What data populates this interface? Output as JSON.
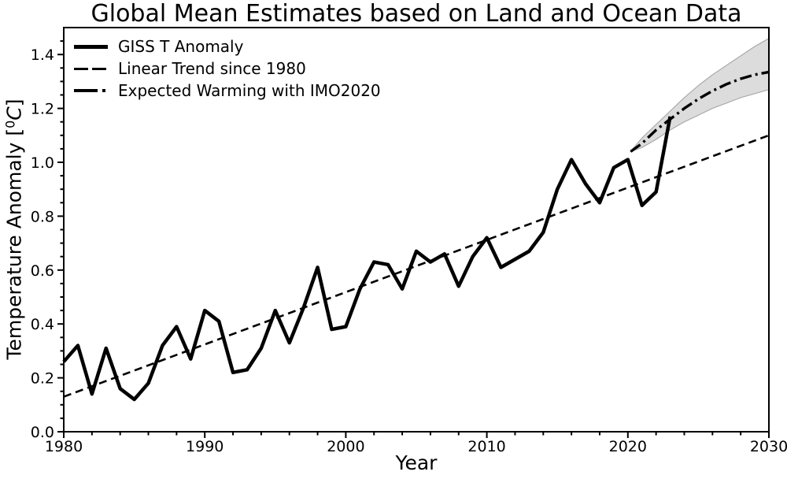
{
  "chart_data": {
    "type": "line",
    "title": "Global Mean Estimates based on Land and Ocean Data",
    "xlabel": "Year",
    "ylabel": "Temperature Anomaly [⁰C]",
    "ylabel_parts": {
      "prefix": "Temperature Anomaly [",
      "sup": "0",
      "unit": "C",
      "suffix": "]"
    },
    "xlim": [
      1980,
      2030
    ],
    "ylim": [
      0.0,
      1.5
    ],
    "grid": false,
    "legend_position": "upper-left",
    "x_ticks": {
      "major": [
        1980,
        1990,
        2000,
        2010,
        2020,
        2030
      ],
      "labels": [
        "1980",
        "1990",
        "2000",
        "2010",
        "2020",
        "2030"
      ],
      "minor_step": 2
    },
    "y_ticks": {
      "major": [
        0.0,
        0.2,
        0.4,
        0.6,
        0.8,
        1.0,
        1.2,
        1.4
      ],
      "labels": [
        "0.0",
        "0.2",
        "0.4",
        "0.6",
        "0.8",
        "1.0",
        "1.2",
        "1.4"
      ],
      "minor_step": 0.05
    },
    "series": [
      {
        "name": "GISS T Anomaly",
        "style": "solid",
        "x": [
          1980,
          1981,
          1982,
          1983,
          1984,
          1985,
          1986,
          1987,
          1988,
          1989,
          1990,
          1991,
          1992,
          1993,
          1994,
          1995,
          1996,
          1997,
          1998,
          1999,
          2000,
          2001,
          2002,
          2003,
          2004,
          2005,
          2006,
          2007,
          2008,
          2009,
          2010,
          2011,
          2012,
          2013,
          2014,
          2015,
          2016,
          2017,
          2018,
          2019,
          2020,
          2021,
          2022,
          2023
        ],
        "y": [
          0.26,
          0.32,
          0.14,
          0.31,
          0.16,
          0.12,
          0.18,
          0.32,
          0.39,
          0.27,
          0.45,
          0.41,
          0.22,
          0.23,
          0.31,
          0.45,
          0.33,
          0.46,
          0.61,
          0.38,
          0.39,
          0.53,
          0.63,
          0.62,
          0.53,
          0.67,
          0.63,
          0.66,
          0.54,
          0.65,
          0.72,
          0.61,
          0.64,
          0.67,
          0.74,
          0.9,
          1.01,
          0.92,
          0.85,
          0.98,
          1.01,
          0.84,
          0.89,
          1.17
        ]
      },
      {
        "name": "Linear Trend since 1980",
        "style": "dashed",
        "x": [
          1980,
          2030
        ],
        "y": [
          0.13,
          1.1
        ]
      },
      {
        "name": "Expected Warming with IMO2020",
        "style": "dashdot",
        "x": [
          2020.2,
          2021,
          2022,
          2023,
          2024,
          2025,
          2026,
          2027,
          2028,
          2029,
          2030
        ],
        "y": [
          1.04,
          1.07,
          1.12,
          1.16,
          1.2,
          1.235,
          1.265,
          1.29,
          1.31,
          1.325,
          1.335
        ]
      }
    ],
    "band": {
      "name": "IMO2020 warming uncertainty range",
      "x": [
        2020.2,
        2021,
        2022,
        2023,
        2024,
        2025,
        2026,
        2027,
        2028,
        2029,
        2030
      ],
      "upper": [
        1.04,
        1.09,
        1.14,
        1.19,
        1.24,
        1.285,
        1.325,
        1.36,
        1.395,
        1.43,
        1.46
      ],
      "lower": [
        1.04,
        1.055,
        1.085,
        1.12,
        1.15,
        1.175,
        1.2,
        1.22,
        1.24,
        1.255,
        1.27
      ]
    },
    "colors": {
      "line": "#000000",
      "band_fill": "#dcdcdc",
      "band_edge": "#ababab",
      "background": "#ffffff"
    }
  }
}
